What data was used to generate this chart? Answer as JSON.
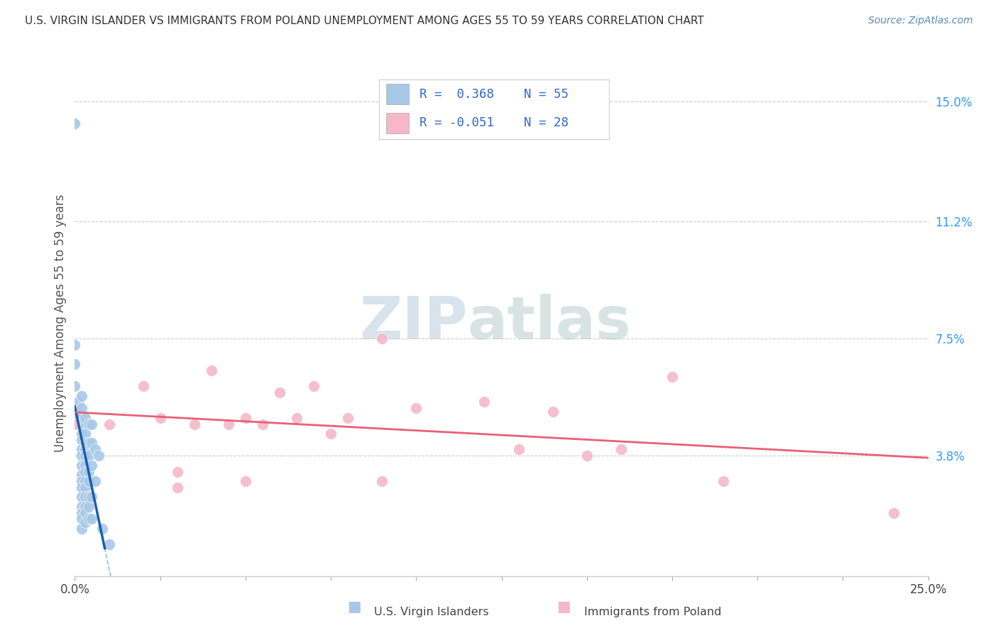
{
  "title": "U.S. VIRGIN ISLANDER VS IMMIGRANTS FROM POLAND UNEMPLOYMENT AMONG AGES 55 TO 59 YEARS CORRELATION CHART",
  "source": "Source: ZipAtlas.com",
  "ylabel": "Unemployment Among Ages 55 to 59 years",
  "x_min": 0.0,
  "x_max": 0.25,
  "y_min": 0.0,
  "y_max": 0.16,
  "y_tick_labels_right": [
    "3.8%",
    "7.5%",
    "11.2%",
    "15.0%"
  ],
  "y_tick_values_right": [
    0.038,
    0.075,
    0.112,
    0.15
  ],
  "blue_color": "#a8c8e8",
  "pink_color": "#f4b8c8",
  "blue_line_color": "#1a5fa8",
  "pink_line_color": "#e8607a",
  "blue_dash_color": "#6899cc",
  "scatter_blue": [
    [
      0.0,
      0.143
    ],
    [
      0.0,
      0.073
    ],
    [
      0.0,
      0.067
    ],
    [
      0.0,
      0.06
    ],
    [
      0.001,
      0.055
    ],
    [
      0.001,
      0.052
    ],
    [
      0.001,
      0.05
    ],
    [
      0.001,
      0.048
    ],
    [
      0.002,
      0.057
    ],
    [
      0.002,
      0.053
    ],
    [
      0.002,
      0.048
    ],
    [
      0.002,
      0.045
    ],
    [
      0.002,
      0.043
    ],
    [
      0.002,
      0.04
    ],
    [
      0.002,
      0.038
    ],
    [
      0.002,
      0.035
    ],
    [
      0.002,
      0.032
    ],
    [
      0.002,
      0.03
    ],
    [
      0.002,
      0.028
    ],
    [
      0.002,
      0.025
    ],
    [
      0.002,
      0.022
    ],
    [
      0.002,
      0.02
    ],
    [
      0.002,
      0.018
    ],
    [
      0.002,
      0.015
    ],
    [
      0.003,
      0.05
    ],
    [
      0.003,
      0.045
    ],
    [
      0.003,
      0.042
    ],
    [
      0.003,
      0.04
    ],
    [
      0.003,
      0.038
    ],
    [
      0.003,
      0.035
    ],
    [
      0.003,
      0.033
    ],
    [
      0.003,
      0.03
    ],
    [
      0.003,
      0.028
    ],
    [
      0.003,
      0.025
    ],
    [
      0.003,
      0.022
    ],
    [
      0.003,
      0.02
    ],
    [
      0.003,
      0.017
    ],
    [
      0.004,
      0.048
    ],
    [
      0.004,
      0.042
    ],
    [
      0.004,
      0.038
    ],
    [
      0.004,
      0.033
    ],
    [
      0.004,
      0.03
    ],
    [
      0.004,
      0.025
    ],
    [
      0.004,
      0.022
    ],
    [
      0.004,
      0.018
    ],
    [
      0.005,
      0.048
    ],
    [
      0.005,
      0.042
    ],
    [
      0.005,
      0.035
    ],
    [
      0.005,
      0.025
    ],
    [
      0.005,
      0.018
    ],
    [
      0.006,
      0.04
    ],
    [
      0.006,
      0.03
    ],
    [
      0.007,
      0.038
    ],
    [
      0.008,
      0.015
    ],
    [
      0.01,
      0.01
    ]
  ],
  "scatter_pink": [
    [
      0.0,
      0.048
    ],
    [
      0.01,
      0.048
    ],
    [
      0.02,
      0.06
    ],
    [
      0.025,
      0.05
    ],
    [
      0.03,
      0.033
    ],
    [
      0.035,
      0.048
    ],
    [
      0.04,
      0.065
    ],
    [
      0.045,
      0.048
    ],
    [
      0.05,
      0.05
    ],
    [
      0.055,
      0.048
    ],
    [
      0.06,
      0.058
    ],
    [
      0.065,
      0.05
    ],
    [
      0.07,
      0.06
    ],
    [
      0.075,
      0.045
    ],
    [
      0.08,
      0.05
    ],
    [
      0.09,
      0.075
    ],
    [
      0.1,
      0.053
    ],
    [
      0.12,
      0.055
    ],
    [
      0.13,
      0.04
    ],
    [
      0.14,
      0.052
    ],
    [
      0.15,
      0.038
    ],
    [
      0.16,
      0.04
    ],
    [
      0.175,
      0.063
    ],
    [
      0.03,
      0.028
    ],
    [
      0.05,
      0.03
    ],
    [
      0.09,
      0.03
    ],
    [
      0.19,
      0.03
    ],
    [
      0.24,
      0.02
    ]
  ],
  "background_color": "#ffffff",
  "grid_color": "#cccccc",
  "watermark_zip_color": "#c8d8ec",
  "watermark_atlas_color": "#c8d8d8"
}
